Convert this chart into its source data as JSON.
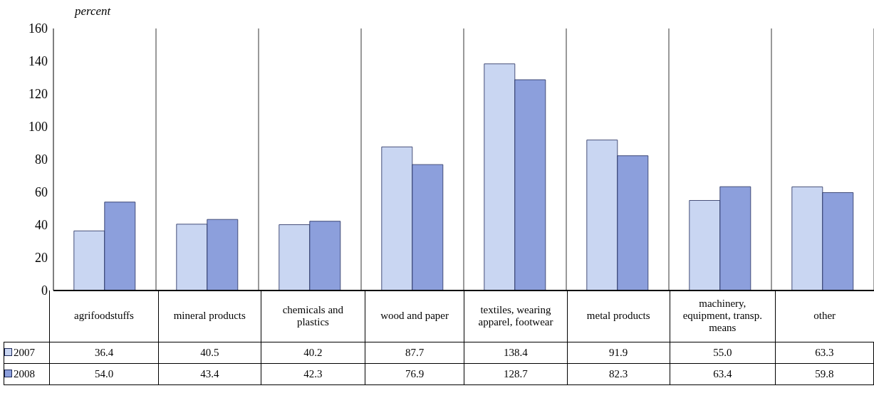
{
  "chart_data": {
    "type": "bar",
    "ylabel": "percent",
    "categories": [
      "agrifoodstuffs",
      "mineral products",
      "chemicals and plastics",
      "wood and paper",
      "textiles, wearing apparel, footwear",
      "metal products",
      "machinery, equipment, transp. means",
      "other"
    ],
    "series": [
      {
        "name": "2007",
        "color": "#c9d6f2",
        "values": [
          36.4,
          40.5,
          40.2,
          87.7,
          138.4,
          91.9,
          55.0,
          63.3
        ],
        "value_labels": [
          "36.4",
          "40.5",
          "40.2",
          "87.7",
          "138.4",
          "91.9",
          "55.0",
          "63.3"
        ]
      },
      {
        "name": "2008",
        "color": "#8c9fdc",
        "values": [
          54.0,
          43.4,
          42.3,
          76.9,
          128.7,
          82.3,
          63.4,
          59.8
        ],
        "value_labels": [
          "54.0",
          "43.4",
          "42.3",
          "76.9",
          "128.7",
          "82.3",
          "63.4",
          "59.8"
        ]
      }
    ],
    "ylim": [
      0,
      160
    ],
    "yticks": [
      0,
      20,
      40,
      60,
      80,
      100,
      120,
      140,
      160
    ],
    "grid": "x",
    "legend": "bottom"
  }
}
